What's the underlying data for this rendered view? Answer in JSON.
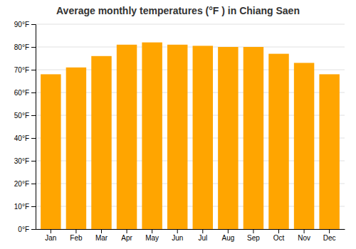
{
  "chart_data": {
    "type": "bar",
    "title": "Average monthly temperatures (°F ) in Chiang Saen",
    "categories": [
      "Jan",
      "Feb",
      "Mar",
      "Apr",
      "May",
      "Jun",
      "Jul",
      "Aug",
      "Sep",
      "Oct",
      "Nov",
      "Dec"
    ],
    "values": [
      68,
      71,
      76,
      81,
      82,
      81,
      80.5,
      80,
      80,
      77,
      73,
      68
    ],
    "color": "#FFA500",
    "ylim": [
      0,
      90
    ],
    "yticks": [
      {
        "value": 0,
        "label": "0°F"
      },
      {
        "value": 10,
        "label": "10°F"
      },
      {
        "value": 20,
        "label": "20°F"
      },
      {
        "value": 30,
        "label": "30°F"
      },
      {
        "value": 40,
        "label": "40°F"
      },
      {
        "value": 50,
        "label": "50°F"
      },
      {
        "value": 60,
        "label": "60°F"
      },
      {
        "value": 70,
        "label": "70°F"
      },
      {
        "value": 80,
        "label": "80°F"
      },
      {
        "value": 90,
        "label": "90°F"
      }
    ],
    "grid": true
  }
}
